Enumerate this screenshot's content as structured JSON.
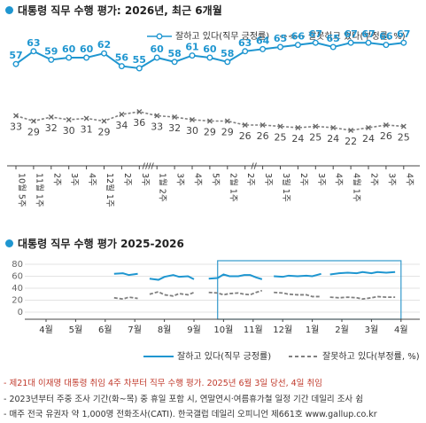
{
  "header": {
    "title1": "대통령 직무 수행 평가: 2026년, 최근 6개월",
    "title2": "대통령 직무 수행 평가 2025-2026"
  },
  "legend": {
    "positive": "잘하고 있다(직무 긍정률)",
    "negative": "잘못하고 있다(부정률, %)",
    "positive2": "잘하고 있다(직무 긍정률)",
    "negative2": "잘못하고 있다(부정률, %)"
  },
  "colors": {
    "positive": "#1f96d0",
    "negative": "#7f7f7f",
    "box": "#3399cc"
  },
  "chart_data": [
    {
      "type": "line",
      "x": [
        "10월 5주",
        "11월 1주",
        "2주",
        "3주",
        "4주",
        "12월 1주",
        "2주",
        "3주",
        "1월 2주",
        "3주",
        "4주",
        "5주",
        "2월 1주",
        "2주",
        "3주",
        "3월 1주",
        "2주",
        "3주",
        "4주",
        "4월 1주",
        "2주",
        "3주",
        "4주"
      ],
      "series": [
        {
          "name": "잘하고 있다(직무 긍정률)",
          "values": [
            57,
            63,
            59,
            60,
            60,
            62,
            56,
            55,
            60,
            58,
            61,
            60,
            58,
            63,
            64,
            65,
            66,
            67,
            65,
            67,
            67,
            66,
            67
          ]
        },
        {
          "name": "잘못하고 있다(부정률, %)",
          "values": [
            33,
            29,
            32,
            30,
            31,
            29,
            34,
            36,
            33,
            32,
            30,
            29,
            29,
            26,
            26,
            25,
            24,
            25,
            24,
            22,
            24,
            26,
            25
          ]
        }
      ],
      "break_markers": [
        "////",
        "//"
      ],
      "xtick_labels": [
        [
          "10",
          "월",
          "5",
          "주"
        ],
        [
          "11",
          "월",
          "1",
          "주"
        ],
        [
          "2",
          "주"
        ],
        [
          "3",
          "주"
        ],
        [
          "4",
          "주"
        ],
        [
          "12",
          "월",
          "1",
          "주"
        ],
        [
          "2",
          "주"
        ],
        [
          "3",
          "주"
        ],
        [
          "1",
          "월",
          "2",
          "주"
        ],
        [
          "3",
          "주"
        ],
        [
          "4",
          "주"
        ],
        [
          "5",
          "주"
        ],
        [
          "2",
          "월",
          "1",
          "주"
        ],
        [
          "2",
          "주"
        ],
        [
          "3",
          "주"
        ],
        [
          "3",
          "월",
          "1",
          "주"
        ],
        [
          "2",
          "주"
        ],
        [
          "3",
          "주"
        ],
        [
          "4",
          "주"
        ],
        [
          "4",
          "월",
          "1",
          "주"
        ],
        [
          "2",
          "주"
        ],
        [
          "3",
          "주"
        ],
        [
          "4",
          "주"
        ]
      ]
    },
    {
      "type": "line",
      "x": [
        "4월",
        "5월",
        "6월",
        "7월",
        "8월",
        "9월",
        "10월",
        "11월",
        "12월",
        "1월",
        "2월",
        "3월",
        "4월"
      ],
      "yticks": [
        0,
        20,
        40,
        60,
        80
      ],
      "ylim": [
        0,
        80
      ],
      "series": [
        {
          "name": "잘하고 있다(직무 긍정률)",
          "segments": [
            [
              [
                6.8,
                64
              ],
              [
                7.1,
                65
              ],
              [
                7.3,
                62
              ],
              [
                7.6,
                64
              ]
            ],
            [
              [
                8.0,
                56
              ],
              [
                8.3,
                54
              ],
              [
                8.5,
                59
              ],
              [
                8.8,
                62
              ],
              [
                9.0,
                59
              ],
              [
                9.3,
                60
              ],
              [
                9.5,
                55
              ]
            ],
            [
              [
                10.0,
                56
              ],
              [
                10.3,
                57
              ],
              [
                10.5,
                63
              ],
              [
                10.7,
                60
              ],
              [
                11.0,
                60
              ],
              [
                11.2,
                62
              ],
              [
                11.4,
                62
              ],
              [
                11.6,
                58
              ],
              [
                11.8,
                55
              ]
            ],
            [
              [
                12.2,
                60
              ],
              [
                12.5,
                59
              ],
              [
                12.7,
                61
              ],
              [
                13.0,
                60
              ],
              [
                13.3,
                61
              ],
              [
                13.5,
                60
              ],
              [
                13.8,
                64
              ]
            ],
            [
              [
                14.1,
                63
              ],
              [
                14.4,
                65
              ],
              [
                14.7,
                66
              ],
              [
                15.0,
                65
              ],
              [
                15.2,
                67
              ],
              [
                15.5,
                65
              ],
              [
                15.7,
                67
              ],
              [
                16.0,
                66
              ],
              [
                16.3,
                67
              ]
            ]
          ]
        },
        {
          "name": "잘못하고 있다(부정률, %)",
          "segments": [
            [
              [
                6.8,
                24
              ],
              [
                7.1,
                22
              ],
              [
                7.3,
                25
              ],
              [
                7.6,
                23
              ]
            ],
            [
              [
                8.0,
                30
              ],
              [
                8.3,
                34
              ],
              [
                8.5,
                29
              ],
              [
                8.8,
                27
              ],
              [
                9.0,
                31
              ],
              [
                9.3,
                29
              ],
              [
                9.5,
                33
              ]
            ],
            [
              [
                10.0,
                33
              ],
              [
                10.3,
                32
              ],
              [
                10.5,
                29
              ],
              [
                10.7,
                31
              ],
              [
                11.0,
                32
              ],
              [
                11.2,
                30
              ],
              [
                11.4,
                29
              ],
              [
                11.6,
                33
              ],
              [
                11.8,
                36
              ]
            ],
            [
              [
                12.2,
                33
              ],
              [
                12.5,
                32
              ],
              [
                12.7,
                30
              ],
              [
                13.0,
                29
              ],
              [
                13.3,
                29
              ],
              [
                13.5,
                26
              ],
              [
                13.8,
                26
              ]
            ],
            [
              [
                14.1,
                25
              ],
              [
                14.4,
                24
              ],
              [
                14.7,
                25
              ],
              [
                15.0,
                24
              ],
              [
                15.2,
                22
              ],
              [
                15.5,
                24
              ],
              [
                15.7,
                26
              ],
              [
                16.0,
                25
              ],
              [
                16.3,
                25
              ]
            ]
          ]
        }
      ]
    }
  ],
  "notes": [
    "- 제21대 이재명 대통령 취임 4주 차부터 직무 수행 평가. 2025년 6월 3일 당선, 4일 취임",
    "- 2023년부터 주중 조사 기간(화~목) 중 휴일 포함 시, 연말연시·여름휴가철 일정 기간 데일리 조사 쉼",
    "- 매주 전국 유권자 약 1,000명 전화조사(CATI). 한국갤럽 데일리 오피니언 제661호 www.gallup.co.kr"
  ]
}
